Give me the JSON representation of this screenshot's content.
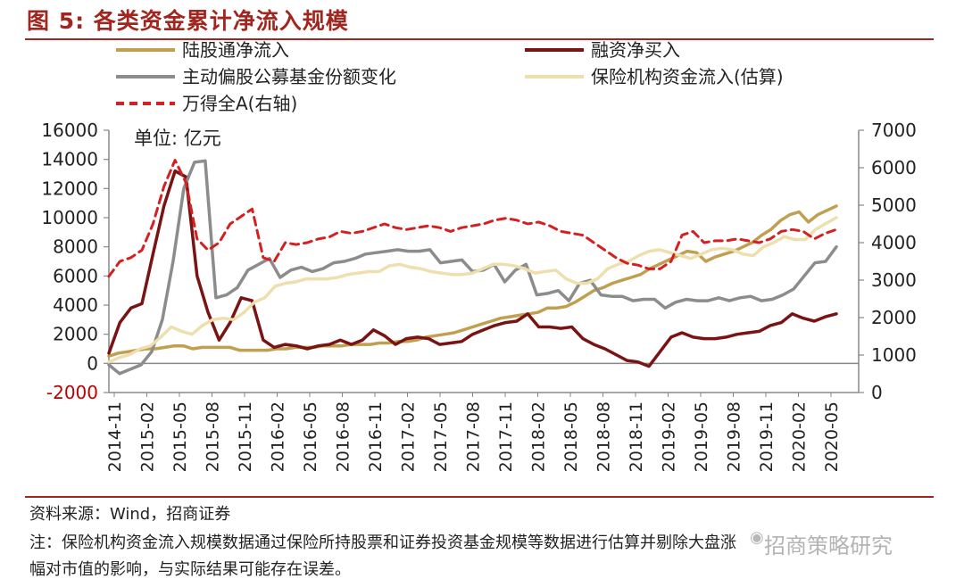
{
  "title": "图 5:  各类资金累计净流入规模",
  "source": "资料来源：Wind，招商证券",
  "note_line1": "注：保险机构资金流入规模数据通过保险所持股票和证券投资基金规模等数据进行估算并剔除大盘涨",
  "note_line2": "幅对市值的影响，与实际结果可能存在误差。",
  "watermark": "招商策略研究",
  "chart_data": {
    "type": "line",
    "unit_label": "单位:  亿元",
    "x_labels": [
      "2014-11",
      "2015-02",
      "2015-05",
      "2015-08",
      "2015-11",
      "2016-02",
      "2016-05",
      "2016-08",
      "2016-11",
      "2017-02",
      "2017-05",
      "2017-08",
      "2017-11",
      "2018-02",
      "2018-05",
      "2018-08",
      "2018-11",
      "2019-02",
      "2019-05",
      "2019-08",
      "2019-11",
      "2020-02",
      "2020-05"
    ],
    "left_axis": {
      "min": -2000,
      "max": 16000,
      "step": 2000,
      "negative_color": "#c00000"
    },
    "right_axis": {
      "min": 0,
      "max": 7000,
      "step": 1000
    },
    "legend": [
      {
        "name": "陆股通净流入",
        "color": "#c0a050",
        "dash": false
      },
      {
        "name": "融资净买入",
        "color": "#7a1414",
        "dash": false
      },
      {
        "name": "主动偏股公募基金份额变化",
        "color": "#8c8c8c",
        "dash": false
      },
      {
        "name": "保险机构资金流入(估算)",
        "color": "#eedfae",
        "dash": false
      },
      {
        "name": "万得全A(右轴)",
        "color": "#d42020",
        "dash": true
      }
    ],
    "series": [
      {
        "name": "陆股通净流入",
        "axis": "left",
        "color": "#c0a050",
        "width": 3.5,
        "values": [
          500,
          700,
          800,
          900,
          1000,
          1000,
          1100,
          1200,
          1200,
          1000,
          1100,
          1100,
          1100,
          1100,
          900,
          900,
          900,
          900,
          1000,
          1000,
          1100,
          1100,
          1100,
          1200,
          1200,
          1200,
          1300,
          1300,
          1300,
          1400,
          1400,
          1500,
          1500,
          1600,
          1800,
          1900,
          2000,
          2100,
          2300,
          2500,
          2700,
          2900,
          3100,
          3200,
          3300,
          3400,
          3500,
          3800,
          3800,
          3900,
          4200,
          4600,
          5000,
          5200,
          5500,
          5700,
          5900,
          6100,
          6500,
          6800,
          7100,
          7400,
          7700,
          7600,
          7000,
          7300,
          7500,
          7700,
          8000,
          8300,
          8800,
          9200,
          9800,
          10200,
          10400,
          9700,
          10200,
          10500,
          10800
        ]
      },
      {
        "name": "融资净买入",
        "axis": "left",
        "color": "#7a1414",
        "width": 3.5,
        "values": [
          700,
          2800,
          3800,
          4100,
          7500,
          10800,
          13200,
          12800,
          6000,
          3500,
          1600,
          2800,
          4500,
          4300,
          1600,
          1100,
          1300,
          1200,
          1000,
          1200,
          1300,
          1600,
          1300,
          1600,
          2300,
          1900,
          1300,
          1700,
          1800,
          1700,
          1300,
          1400,
          1500,
          2000,
          2300,
          2600,
          2800,
          2900,
          3400,
          2500,
          2500,
          2400,
          2500,
          1700,
          1300,
          1000,
          600,
          200,
          100,
          -200,
          800,
          1800,
          2100,
          1800,
          1700,
          1700,
          1800,
          2000,
          2100,
          2200,
          2600,
          2800,
          3400,
          3100,
          2900,
          3200,
          3400
        ]
      },
      {
        "name": "主动偏股公募基金份额变化",
        "axis": "left",
        "color": "#8c8c8c",
        "width": 3.5,
        "values": [
          -100,
          -700,
          -400,
          -100,
          800,
          3000,
          7000,
          12000,
          13800,
          13900,
          4500,
          4700,
          5200,
          6400,
          6800,
          7200,
          5900,
          6400,
          6600,
          6300,
          6500,
          6900,
          7000,
          7200,
          7500,
          7600,
          7700,
          7800,
          7700,
          7700,
          7800,
          6900,
          7000,
          7100,
          6300,
          6400,
          6800,
          5600,
          6400,
          6800,
          4700,
          4800,
          5000,
          4300,
          5500,
          5700,
          4700,
          4600,
          4600,
          4300,
          4400,
          4400,
          3800,
          4200,
          4400,
          4300,
          4300,
          4500,
          4300,
          4500,
          4600,
          4300,
          4400,
          4700,
          5100,
          6000,
          6900,
          7000,
          8000
        ]
      },
      {
        "name": "保险机构资金流入(估算)",
        "axis": "left",
        "color": "#eedfae",
        "width": 3.5,
        "values": [
          100,
          400,
          600,
          1000,
          1200,
          1800,
          2500,
          2200,
          2000,
          2600,
          3000,
          3100,
          3000,
          3500,
          4200,
          4500,
          5300,
          5500,
          5600,
          5800,
          5800,
          5800,
          5900,
          6100,
          6200,
          6300,
          6300,
          6700,
          6800,
          6600,
          6500,
          6300,
          6200,
          6100,
          6100,
          6200,
          6500,
          6800,
          6800,
          6700,
          6500,
          6200,
          6300,
          6400,
          5800,
          5500,
          5500,
          5800,
          6500,
          6800,
          7000,
          7400,
          7700,
          7800,
          7600,
          7400,
          7200,
          7500,
          7800,
          7900,
          7800,
          7500,
          7400,
          8000,
          8300,
          8700,
          8500,
          8500,
          9200,
          9600,
          10000
        ]
      },
      {
        "name": "万得全A(右轴)",
        "axis": "right",
        "color": "#d42020",
        "width": 3,
        "dash": true,
        "values": [
          3100,
          3500,
          3600,
          3800,
          4500,
          5500,
          6200,
          5600,
          4100,
          3800,
          4000,
          4500,
          4700,
          4900,
          3600,
          3500,
          4000,
          3950,
          4000,
          4100,
          4150,
          4300,
          4250,
          4300,
          4400,
          4500,
          4400,
          4350,
          4400,
          4450,
          4400,
          4300,
          4400,
          4450,
          4500,
          4600,
          4650,
          4600,
          4500,
          4550,
          4450,
          4300,
          4250,
          4200,
          4000,
          3800,
          3600,
          3450,
          3400,
          3300,
          3300,
          3500,
          4200,
          4300,
          4000,
          4050,
          4050,
          4100,
          4050,
          4000,
          4100,
          4300,
          4350,
          4300,
          4100,
          4250,
          4350
        ]
      }
    ]
  }
}
